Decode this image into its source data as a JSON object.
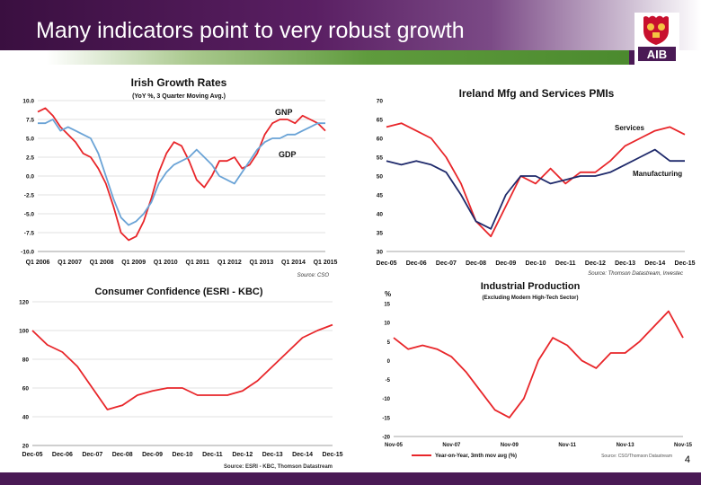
{
  "slide": {
    "title": "Many indicators point to very robust growth",
    "page_number": "4",
    "logo_text": "AIB"
  },
  "colors": {
    "red": "#e8262a",
    "blue": "#6aa3d6",
    "navy": "#1f2a6b",
    "header": "#4a1a55",
    "green": "#4b8a2e"
  },
  "chart_data": [
    {
      "id": "growth",
      "type": "line",
      "title": "Irish Growth Rates",
      "subtitle": "(YoY %, 3 Quarter Moving Avg.)",
      "source": "Source: CSO",
      "ylim": [
        -10,
        10
      ],
      "yticks": [
        "10.0",
        "7.5",
        "5.0",
        "2.5",
        "0.0",
        "-2.5",
        "-5.0",
        "-7.5",
        "-10.0"
      ],
      "xticks": [
        "Q1 2006",
        "Q1 2007",
        "Q1 2008",
        "Q1 2009",
        "Q1 2010",
        "Q1 2011",
        "Q1 2012",
        "Q1 2013",
        "Q1 2014",
        "Q1 2015"
      ],
      "x": [
        2006.0,
        2006.25,
        2006.5,
        2006.75,
        2007.0,
        2007.25,
        2007.5,
        2007.75,
        2008.0,
        2008.25,
        2008.5,
        2008.75,
        2009.0,
        2009.25,
        2009.5,
        2009.75,
        2010.0,
        2010.25,
        2010.5,
        2010.75,
        2011.0,
        2011.25,
        2011.5,
        2011.75,
        2012.0,
        2012.25,
        2012.5,
        2012.75,
        2013.0,
        2013.25,
        2013.5,
        2013.75,
        2014.0,
        2014.25,
        2014.5,
        2014.75,
        2015.0,
        2015.25,
        2015.5
      ],
      "series": [
        {
          "name": "GNP",
          "color": "#e8262a",
          "values": [
            8.5,
            9.0,
            8.0,
            6.5,
            5.5,
            4.5,
            3.0,
            2.5,
            1.0,
            -1.0,
            -4.0,
            -7.5,
            -8.5,
            -8.0,
            -6.0,
            -3.0,
            0.5,
            3.0,
            4.5,
            4.0,
            2.0,
            -0.5,
            -1.5,
            0.0,
            2.0,
            2.0,
            2.5,
            1.0,
            1.5,
            3.0,
            5.5,
            7.0,
            7.5,
            7.5,
            7.0,
            8.0,
            7.5,
            7.0,
            6.0
          ]
        },
        {
          "name": "GDP",
          "color": "#6aa3d6",
          "values": [
            7.0,
            7.0,
            7.5,
            6.0,
            6.5,
            6.0,
            5.5,
            5.0,
            3.0,
            0.0,
            -3.0,
            -5.5,
            -6.5,
            -6.0,
            -5.0,
            -3.5,
            -1.0,
            0.5,
            1.5,
            2.0,
            2.5,
            3.5,
            2.5,
            1.5,
            0.0,
            -0.5,
            -1.0,
            0.5,
            2.0,
            3.5,
            4.5,
            5.0,
            5.0,
            5.5,
            5.5,
            6.0,
            6.5,
            7.0,
            7.0
          ]
        }
      ],
      "annotations": [
        "GNP",
        "GDP"
      ]
    },
    {
      "id": "pmi",
      "type": "line",
      "title": "Ireland Mfg and Services PMIs",
      "source": "Source: Thomson Datastream, Investec",
      "ylim": [
        30,
        70
      ],
      "yticks": [
        "70",
        "65",
        "60",
        "55",
        "50",
        "45",
        "40",
        "35",
        "30"
      ],
      "xticks": [
        "Dec-05",
        "Dec-06",
        "Dec-07",
        "Dec-08",
        "Dec-09",
        "Dec-10",
        "Dec-11",
        "Dec-12",
        "Dec-13",
        "Dec-14",
        "Dec-15"
      ],
      "x": [
        2005.9,
        2006.4,
        2006.9,
        2007.4,
        2007.9,
        2008.4,
        2008.9,
        2009.4,
        2009.9,
        2010.4,
        2010.9,
        2011.4,
        2011.9,
        2012.4,
        2012.9,
        2013.4,
        2013.9,
        2014.4,
        2014.9,
        2015.4,
        2015.9
      ],
      "series": [
        {
          "name": "Services",
          "color": "#e8262a",
          "values": [
            63,
            64,
            62,
            60,
            55,
            48,
            38,
            34,
            42,
            50,
            48,
            52,
            48,
            51,
            51,
            54,
            58,
            60,
            62,
            63,
            61
          ]
        },
        {
          "name": "Manufacturing",
          "color": "#1f2a6b",
          "values": [
            54,
            53,
            54,
            53,
            51,
            45,
            38,
            36,
            45,
            50,
            50,
            48,
            49,
            50,
            50,
            51,
            53,
            55,
            57,
            54,
            54
          ]
        }
      ],
      "annotations": [
        "Services",
        "Manufacturing"
      ]
    },
    {
      "id": "confidence",
      "type": "line",
      "title": "Consumer Confidence (ESRI - KBC)",
      "source": "Source: ESRI - KBC, Thomson Datastream",
      "ylim": [
        20,
        120
      ],
      "yticks": [
        "120",
        "100",
        "80",
        "60",
        "40",
        "20"
      ],
      "xticks": [
        "Dec-05",
        "Dec-06",
        "Dec-07",
        "Dec-08",
        "Dec-09",
        "Dec-10",
        "Dec-11",
        "Dec-12",
        "Dec-13",
        "Dec-14",
        "Dec-15"
      ],
      "x": [
        2005.9,
        2006.4,
        2006.9,
        2007.4,
        2007.9,
        2008.4,
        2008.9,
        2009.4,
        2009.9,
        2010.4,
        2010.9,
        2011.4,
        2011.9,
        2012.4,
        2012.9,
        2013.4,
        2013.9,
        2014.4,
        2014.9,
        2015.4,
        2015.9
      ],
      "series": [
        {
          "name": "",
          "color": "#e8262a",
          "values": [
            100,
            90,
            85,
            75,
            60,
            45,
            48,
            55,
            58,
            60,
            60,
            55,
            55,
            55,
            58,
            65,
            75,
            85,
            95,
            100,
            104
          ]
        }
      ]
    },
    {
      "id": "industrial",
      "type": "line",
      "title": "Industrial Production",
      "subtitle": "(Excluding Modern High-Tech Sector)",
      "unit": "%",
      "source": "Source: CSO/Thomson Datastream",
      "legend": "Year-on-Year, 3mth mov avg (%)",
      "ylim": [
        -20,
        15
      ],
      "yticks": [
        "15",
        "10",
        "5",
        "0",
        "-5",
        "-10",
        "-15",
        "-20"
      ],
      "xticks": [
        "Nov-05",
        "Nov-07",
        "Nov-09",
        "Nov-11",
        "Nov-13",
        "Nov-15"
      ],
      "x": [
        2005.9,
        2006.4,
        2006.9,
        2007.4,
        2007.9,
        2008.4,
        2008.9,
        2009.4,
        2009.9,
        2010.4,
        2010.9,
        2011.4,
        2011.9,
        2012.4,
        2012.9,
        2013.4,
        2013.9,
        2014.4,
        2014.9,
        2015.4,
        2015.9
      ],
      "series": [
        {
          "name": "Year-on-Year, 3mth mov avg (%)",
          "color": "#e8262a",
          "values": [
            6,
            3,
            4,
            3,
            1,
            -3,
            -8,
            -13,
            -15,
            -10,
            0,
            6,
            4,
            0,
            -2,
            2,
            2,
            5,
            9,
            13,
            6
          ]
        }
      ]
    }
  ]
}
